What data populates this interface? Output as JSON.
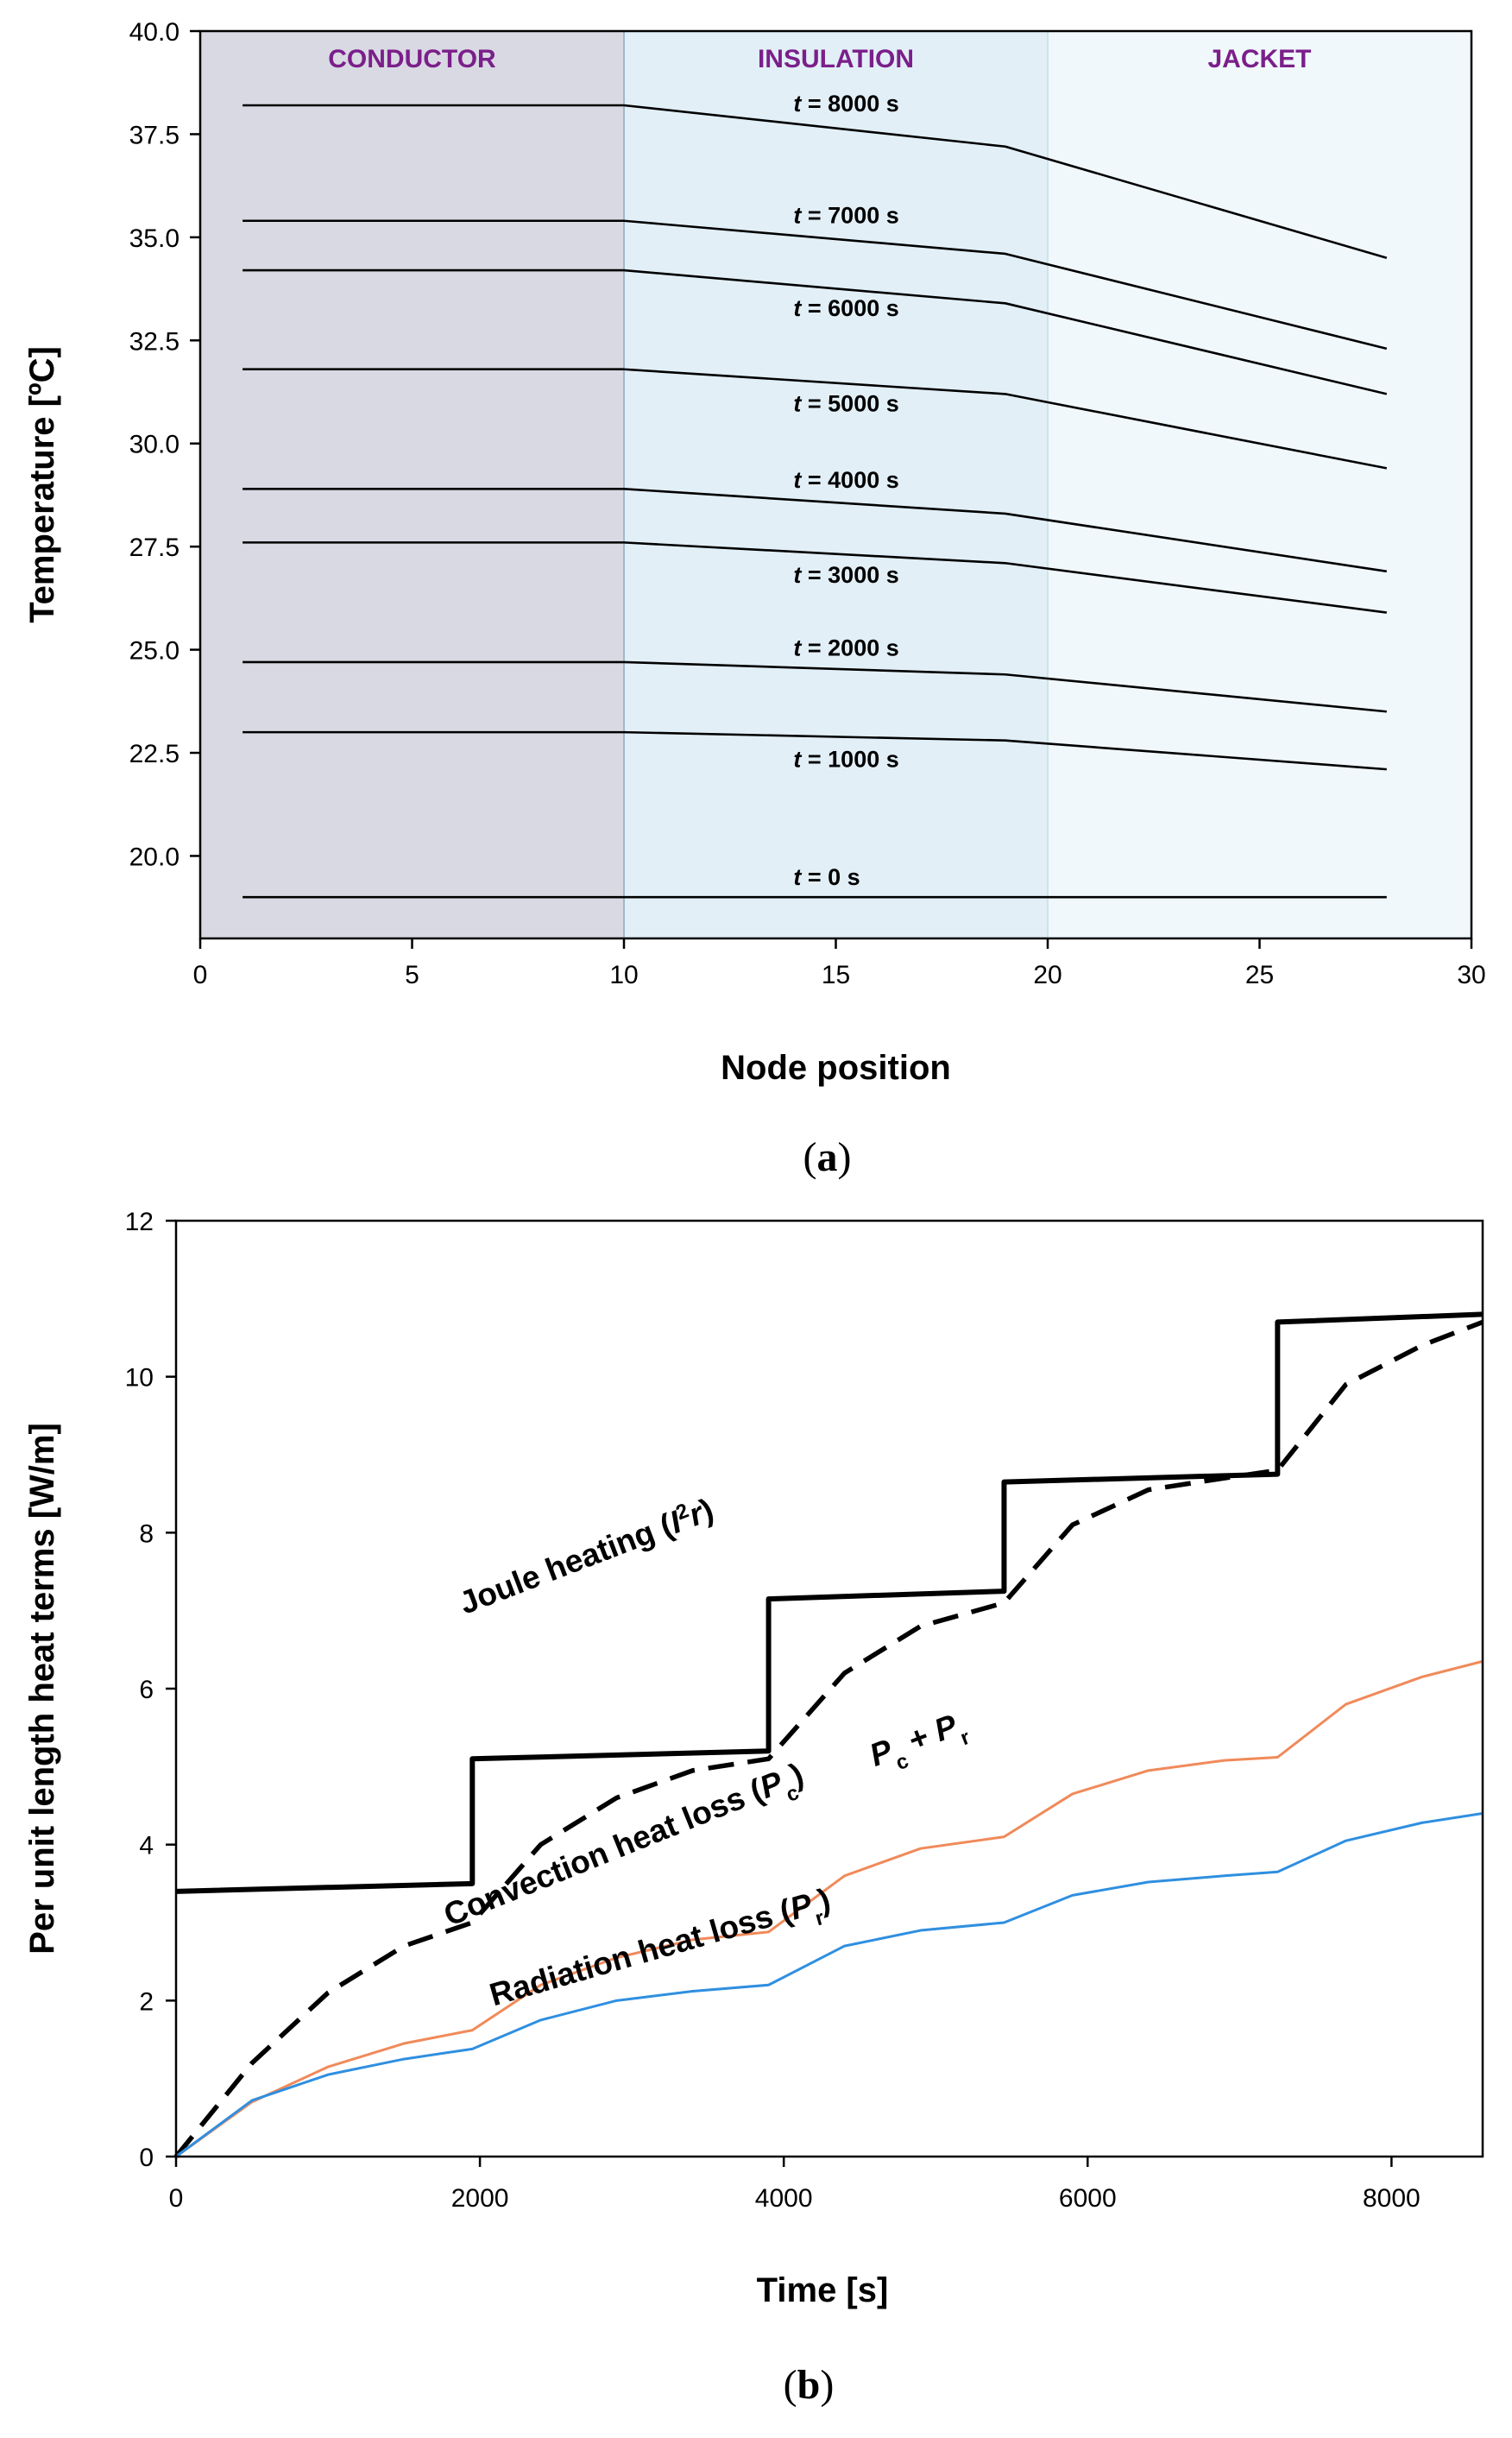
{
  "chart_data": [
    {
      "type": "line",
      "panel_label": "a",
      "xlabel": "Node position",
      "ylabel": "Temperature [ºC]",
      "xlim": [
        0,
        30
      ],
      "ylim": [
        18,
        40
      ],
      "xticks": [
        "0",
        "5",
        "10",
        "15",
        "20",
        "25",
        "30"
      ],
      "yticks": [
        "20.0",
        "22.5",
        "25.0",
        "27.5",
        "30.0",
        "32.5",
        "35.0",
        "37.5",
        "40.0"
      ],
      "regions": [
        {
          "label": "CONDUCTOR",
          "x_range": [
            0,
            10
          ],
          "color": "#d9d9e3"
        },
        {
          "label": "INSULATION",
          "x_range": [
            10,
            20
          ],
          "color": "#e2eff7"
        },
        {
          "label": "JACKET",
          "x_range": [
            20,
            30
          ],
          "color": "#f0f8fc"
        }
      ],
      "series": [
        {
          "name": "t = 0 s",
          "t_prefix": "t",
          "t_rest": " = 0 s",
          "x": [
            1,
            10,
            19,
            28
          ],
          "values": [
            19.0,
            19.0,
            19.0,
            19.0
          ]
        },
        {
          "name": "t = 1000 s",
          "t_prefix": "t",
          "t_rest": " = 1000 s",
          "x": [
            1,
            10,
            19,
            28
          ],
          "values": [
            23.0,
            23.0,
            22.8,
            22.1
          ]
        },
        {
          "name": "t = 2000 s",
          "t_prefix": "t",
          "t_rest": " = 2000 s",
          "x": [
            1,
            10,
            19,
            28
          ],
          "values": [
            24.7,
            24.7,
            24.4,
            23.5
          ]
        },
        {
          "name": "t = 3000 s",
          "t_prefix": "t",
          "t_rest": " = 3000 s",
          "x": [
            1,
            10,
            19,
            28
          ],
          "values": [
            27.6,
            27.6,
            27.1,
            25.9
          ]
        },
        {
          "name": "t = 4000 s",
          "t_prefix": "t",
          "t_rest": " = 4000 s",
          "x": [
            1,
            10,
            19,
            28
          ],
          "values": [
            28.9,
            28.9,
            28.3,
            26.9
          ]
        },
        {
          "name": "t = 5000 s",
          "t_prefix": "t",
          "t_rest": " = 5000 s",
          "x": [
            1,
            10,
            19,
            28
          ],
          "values": [
            31.8,
            31.8,
            31.2,
            29.4
          ]
        },
        {
          "name": "t = 6000 s",
          "t_prefix": "t",
          "t_rest": " = 6000 s",
          "x": [
            1,
            10,
            19,
            28
          ],
          "values": [
            34.2,
            34.2,
            33.4,
            31.2
          ]
        },
        {
          "name": "t = 7000 s",
          "t_prefix": "t",
          "t_rest": " = 7000 s",
          "x": [
            1,
            10,
            19,
            28
          ],
          "values": [
            35.4,
            35.4,
            34.6,
            32.3
          ]
        },
        {
          "name": "t = 8000 s",
          "t_prefix": "t",
          "t_rest": " = 8000 s",
          "x": [
            1,
            10,
            19,
            28
          ],
          "values": [
            38.2,
            38.2,
            37.2,
            34.5
          ]
        }
      ]
    },
    {
      "type": "line",
      "panel_label": "b",
      "xlabel": "Time [s]",
      "ylabel": "Per unit length heat terms [W/m]",
      "xlim": [
        0,
        8600
      ],
      "ylim": [
        0,
        12
      ],
      "xticks": [
        "0",
        "2000",
        "4000",
        "6000",
        "8000"
      ],
      "yticks": [
        "0",
        "2",
        "4",
        "6",
        "8",
        "10",
        "12"
      ],
      "series": [
        {
          "name": "Joule heating (I²r)",
          "label_main": "Joule heating (",
          "label_sup": "2",
          "label_sym1": "I",
          "label_sym2": "r",
          "label_close": ")",
          "color": "#000000",
          "style": "solid",
          "x": [
            0,
            1950,
            1950,
            3900,
            3900,
            5450,
            5450,
            7250,
            7250,
            8600
          ],
          "values": [
            3.4,
            3.5,
            5.1,
            5.2,
            7.15,
            7.25,
            8.65,
            8.75,
            10.7,
            10.8
          ]
        },
        {
          "name": "Pc + Pr",
          "label_a": "P",
          "label_a_sub": "c",
          "label_mid": " + ",
          "label_b": "P",
          "label_b_sub": "r",
          "color": "#000000",
          "style": "dashed",
          "x": [
            0,
            500,
            1000,
            1500,
            1950,
            2400,
            2900,
            3400,
            3900,
            4400,
            4900,
            5450,
            5900,
            6400,
            6900,
            7250,
            7700,
            8200,
            8600
          ],
          "values": [
            0,
            1.2,
            2.1,
            2.7,
            3.0,
            4.0,
            4.6,
            4.95,
            5.1,
            6.2,
            6.8,
            7.1,
            8.1,
            8.55,
            8.7,
            8.8,
            9.9,
            10.4,
            10.7
          ]
        },
        {
          "name": "Convection heat loss (Pc)",
          "label_main": "Convection heat loss (",
          "label_sym": "P",
          "label_sub": "c",
          "label_close": ")",
          "color": "#f08a5a",
          "style": "solid",
          "x": [
            0,
            500,
            1000,
            1500,
            1950,
            2400,
            2900,
            3400,
            3900,
            4400,
            4900,
            5450,
            5900,
            6400,
            6900,
            7250,
            7700,
            8200,
            8600
          ],
          "values": [
            0,
            0.7,
            1.15,
            1.45,
            1.62,
            2.2,
            2.55,
            2.78,
            2.88,
            3.6,
            3.95,
            4.1,
            4.65,
            4.95,
            5.08,
            5.12,
            5.8,
            6.15,
            6.35
          ]
        },
        {
          "name": "Radiation heat loss (Pr)",
          "label_main": "Radiation heat loss (",
          "label_sym": "P",
          "label_sub": "r",
          "label_close": ")",
          "color": "#2f8fe0",
          "style": "solid",
          "x": [
            0,
            500,
            1000,
            1500,
            1950,
            2400,
            2900,
            3400,
            3900,
            4400,
            4900,
            5450,
            5900,
            6400,
            6900,
            7250,
            7700,
            8200,
            8600
          ],
          "values": [
            0,
            0.72,
            1.05,
            1.25,
            1.38,
            1.75,
            2.0,
            2.12,
            2.2,
            2.7,
            2.9,
            3.0,
            3.35,
            3.52,
            3.6,
            3.65,
            4.05,
            4.28,
            4.4
          ]
        }
      ]
    }
  ]
}
